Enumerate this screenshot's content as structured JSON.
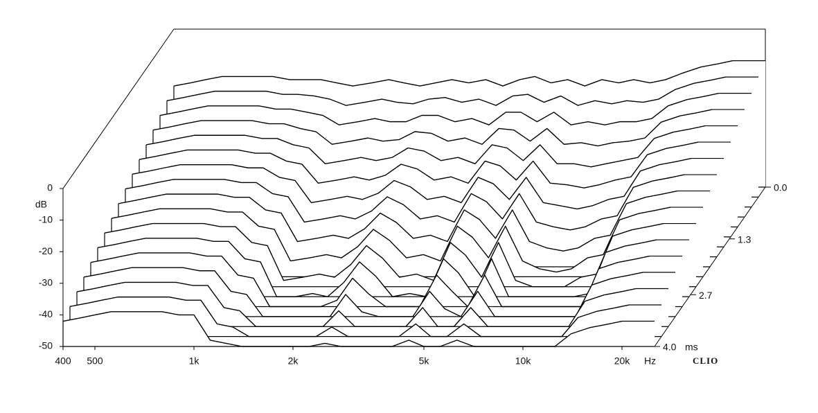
{
  "chart_data": {
    "type": "waterfall",
    "brand": "CLIO",
    "xlabel": "Hz",
    "ylabel": "dB",
    "zlabel": "ms",
    "xscale": "log",
    "xlim": [
      400,
      20000
    ],
    "ylim": [
      -50,
      0
    ],
    "zlim": [
      0,
      4
    ],
    "xticks": [
      400,
      500,
      {
        "value": 1000,
        "label": "1k"
      },
      {
        "value": 2000,
        "label": "2k"
      },
      {
        "value": 5000,
        "label": "5k"
      },
      {
        "value": 10000,
        "label": "10k"
      },
      {
        "value": 20000,
        "label": "20k"
      }
    ],
    "yticks": [
      0,
      -10,
      -20,
      -30,
      -40,
      -50
    ],
    "zticks": [
      {
        "value": 0,
        "label": "0.0"
      },
      {
        "value": 1.3,
        "label": "1.3"
      },
      {
        "value": 2.7,
        "label": "2.7"
      },
      {
        "value": 4,
        "label": "4.0"
      }
    ],
    "color": "#000000",
    "x": [
      400,
      450,
      500,
      560,
      630,
      710,
      800,
      900,
      1000,
      1120,
      1250,
      1400,
      1600,
      1800,
      2000,
      2240,
      2500,
      2800,
      3150,
      3550,
      4000,
      4500,
      5000,
      5600,
      6300,
      7100,
      8000,
      9000,
      10000,
      11200,
      12500,
      14000,
      16000,
      18000,
      20000
    ],
    "slices": [
      {
        "time": 0,
        "values": [
          -18,
          -17,
          -16,
          -15,
          -15,
          -15,
          -15,
          -16,
          -16,
          -16,
          -17,
          -18,
          -17,
          -16,
          -17,
          -18,
          -17,
          -16,
          -17,
          -16,
          -18,
          -16,
          -15,
          -17,
          -16,
          -18,
          -16,
          -17,
          -16,
          -17,
          -16,
          -14,
          -12,
          -11,
          -10
        ]
      },
      {
        "time": 0.25,
        "values": [
          -19.5,
          -18.5,
          -17.5,
          -16.5,
          -16.5,
          -16.5,
          -16.5,
          -17.5,
          -17.5,
          -18,
          -19,
          -21,
          -20,
          -19,
          -20,
          -20.5,
          -19,
          -18.5,
          -20,
          -19,
          -21,
          -18,
          -17.5,
          -20,
          -18,
          -21,
          -19.5,
          -20.5,
          -19.5,
          -20,
          -19,
          -16,
          -14,
          -13,
          -12
        ]
      },
      {
        "time": 0.5,
        "values": [
          -21,
          -20,
          -19,
          -18,
          -18,
          -18,
          -18,
          -19,
          -19,
          -20,
          -21,
          -24,
          -23,
          -22,
          -23,
          -23,
          -21,
          -21,
          -23,
          -22,
          -24,
          -20,
          -20,
          -23,
          -20,
          -24,
          -23,
          -24,
          -23,
          -23,
          -22,
          -18,
          -16,
          -15,
          -14
        ]
      },
      {
        "time": 0.75,
        "values": [
          -22.5,
          -21.5,
          -20.5,
          -19.5,
          -19.5,
          -19.5,
          -19.5,
          -20.5,
          -20.5,
          -22,
          -23,
          -27,
          -26,
          -25,
          -26,
          -25.5,
          -23,
          -23.5,
          -26,
          -25,
          -27,
          -22,
          -22.5,
          -26,
          -22,
          -27,
          -26.5,
          -27.5,
          -26.5,
          -26,
          -25,
          -20,
          -18,
          -17,
          -16
        ]
      },
      {
        "time": 1,
        "values": [
          -24,
          -23,
          -22,
          -21,
          -21,
          -21,
          -21,
          -22,
          -22,
          -24,
          -25,
          -30,
          -29,
          -28,
          -29,
          -28,
          -25,
          -26,
          -29,
          -28,
          -30,
          -24,
          -25,
          -29,
          -24,
          -30,
          -30,
          -31,
          -30,
          -29,
          -28,
          -22,
          -20,
          -19,
          -18
        ]
      },
      {
        "time": 1.25,
        "values": [
          -25.5,
          -24.5,
          -23.5,
          -22.5,
          -22.5,
          -22.5,
          -22.5,
          -23.5,
          -23.5,
          -26,
          -27,
          -33,
          -32,
          -31,
          -32,
          -30.5,
          -27,
          -28.5,
          -32,
          -31,
          -33,
          -26,
          -27.5,
          -32,
          -26,
          -33,
          -33.5,
          -34.5,
          -33.5,
          -32,
          -31,
          -24,
          -22,
          -21,
          -20
        ]
      },
      {
        "time": 1.5,
        "values": [
          -27,
          -26,
          -25,
          -24,
          -24,
          -24,
          -24,
          -25,
          -25,
          -28,
          -29,
          -36,
          -35,
          -34,
          -35,
          -33,
          -29,
          -31,
          -35,
          -34,
          -36,
          -28,
          -30,
          -35,
          -28,
          -36,
          -37,
          -38,
          -37,
          -35,
          -34,
          -26,
          -24,
          -23,
          -22
        ]
      },
      {
        "time": 1.75,
        "values": [
          -28.5,
          -27.5,
          -26.5,
          -25.5,
          -25.5,
          -25.5,
          -25.5,
          -26.5,
          -26.5,
          -30,
          -31,
          -39,
          -38,
          -37,
          -38,
          -35.5,
          -31,
          -33.5,
          -38,
          -37,
          -39,
          -30,
          -32.5,
          -38,
          -30,
          -39,
          -40.5,
          -41.5,
          -40.5,
          -38,
          -37,
          -28,
          -26,
          -25,
          -24
        ]
      },
      {
        "time": 2,
        "values": [
          -30,
          -29,
          -28,
          -27,
          -27,
          -27,
          -27,
          -28,
          -28,
          -32,
          -33,
          -42,
          -41,
          -40,
          -41,
          -38,
          -33,
          -36,
          -41,
          -40,
          -42,
          -32,
          -35,
          -41,
          -32,
          -42,
          -44,
          -45,
          -44,
          -41,
          -40,
          -30,
          -28,
          -27,
          -26
        ]
      },
      {
        "time": 2.25,
        "values": [
          -31.5,
          -30.5,
          -29.5,
          -28.5,
          -28.5,
          -28.5,
          -28.5,
          -29.5,
          -29.5,
          -34,
          -35,
          -45,
          -44,
          -43,
          -44,
          -40.5,
          -35,
          -38.5,
          -44,
          -43,
          -45,
          -34,
          -37.5,
          -44,
          -34,
          -45,
          -47.5,
          -48.5,
          -47.5,
          -44,
          -43,
          -32,
          -30,
          -29,
          -28
        ]
      },
      {
        "time": 2.5,
        "values": [
          -33,
          -32,
          -31,
          -30,
          -30,
          -30,
          -30,
          -31,
          -31,
          -36,
          -37,
          -48,
          -47,
          -46,
          -47,
          -43,
          -37,
          -41,
          -47,
          -46,
          -48,
          -36,
          -40,
          -47,
          -36,
          -48,
          -50,
          -50,
          -50,
          -47,
          -46,
          -34,
          -32,
          -31,
          -30
        ]
      },
      {
        "time": 2.75,
        "values": [
          -34.5,
          -33.5,
          -32.5,
          -31.5,
          -31.5,
          -31.5,
          -31.5,
          -32.5,
          -32.5,
          -38,
          -39,
          -50,
          -50,
          -49,
          -50,
          -45.5,
          -39,
          -43.5,
          -50,
          -49,
          -50,
          -38,
          -42.5,
          -50,
          -38,
          -50,
          -50,
          -50,
          -50,
          -50,
          -49,
          -36,
          -34,
          -33,
          -32
        ]
      },
      {
        "time": 3,
        "values": [
          -36,
          -35,
          -34,
          -33,
          -33,
          -33,
          -33,
          -34,
          -34,
          -40,
          -41,
          -50,
          -50,
          -50,
          -50,
          -48,
          -41,
          -46,
          -50,
          -50,
          -50,
          -40,
          -45,
          -50,
          -40,
          -50,
          -50,
          -50,
          -50,
          -50,
          -50,
          -38,
          -36,
          -35,
          -34
        ]
      },
      {
        "time": 3.25,
        "values": [
          -37.5,
          -36.5,
          -35.5,
          -34.5,
          -34.5,
          -34.5,
          -34.5,
          -35.5,
          -35.5,
          -42,
          -43,
          -50,
          -50,
          -50,
          -50,
          -50,
          -43,
          -48.5,
          -50,
          -50,
          -50,
          -42,
          -47.5,
          -50,
          -42,
          -50,
          -50,
          -50,
          -50,
          -50,
          -50,
          -40,
          -38,
          -37,
          -36
        ]
      },
      {
        "time": 3.5,
        "values": [
          -39,
          -38,
          -37,
          -36,
          -36,
          -36,
          -36,
          -37,
          -37,
          -44,
          -45,
          -50,
          -50,
          -50,
          -50,
          -50,
          -45,
          -50,
          -50,
          -50,
          -50,
          -44,
          -50,
          -50,
          -44,
          -50,
          -50,
          -50,
          -50,
          -50,
          -50,
          -42,
          -40,
          -39,
          -38
        ]
      },
      {
        "time": 3.75,
        "values": [
          -40.5,
          -39.5,
          -38.5,
          -37.5,
          -37.5,
          -37.5,
          -37.5,
          -38.5,
          -38.5,
          -46,
          -47,
          -50,
          -50,
          -50,
          -50,
          -50,
          -47,
          -50,
          -50,
          -50,
          -50,
          -46,
          -50,
          -50,
          -46,
          -50,
          -50,
          -50,
          -50,
          -50,
          -50,
          -44,
          -42,
          -41,
          -40
        ]
      },
      {
        "time": 4,
        "values": [
          -42,
          -41,
          -40,
          -39,
          -39,
          -39,
          -39,
          -40,
          -40,
          -48,
          -49,
          -50,
          -50,
          -50,
          -50,
          -50,
          -49,
          -50,
          -50,
          -50,
          -50,
          -48,
          -50,
          -50,
          -48,
          -50,
          -50,
          -50,
          -50,
          -50,
          -50,
          -46,
          -44,
          -43,
          -42
        ]
      }
    ]
  }
}
